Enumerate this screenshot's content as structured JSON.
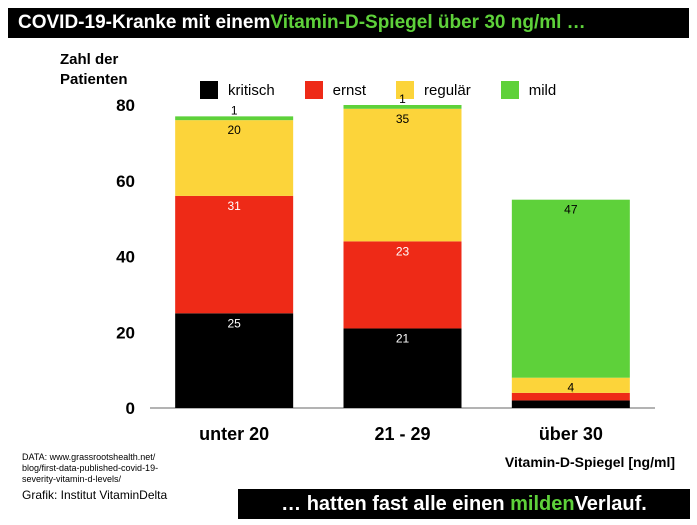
{
  "header": {
    "title_prefix": "COVID-19-Kranke mit einem ",
    "title_highlight": "Vitamin-D-Spiegel  über 30 ng/ml …"
  },
  "footer": {
    "text_prefix": "… hatten fast alle einen ",
    "text_highlight": "milden",
    "text_suffix": " Verlauf.",
    "source_lines": [
      "DATA: www.grassrootshealth.net/",
      "blog/first-data-published-covid-19-",
      "severity-vitamin-d-levels/"
    ],
    "credit": "Grafik: Institut VitaminDelta"
  },
  "colors": {
    "highlight": "#5ed13a"
  },
  "chart_data": {
    "type": "bar",
    "stacked": true,
    "ylabel_lines": [
      "Zahl der",
      "Patienten"
    ],
    "xlabel": "Vitamin-D-Spiegel [ng/ml]",
    "categories": [
      "unter 20",
      "21 - 29",
      "über 30"
    ],
    "ylim": [
      0,
      80
    ],
    "yticks": [
      0,
      20,
      40,
      60,
      80
    ],
    "grid": false,
    "legend_position": "top",
    "series": [
      {
        "name": "kritisch",
        "color": "#000000",
        "label_color": "#ffffff",
        "values": [
          25,
          21,
          2
        ]
      },
      {
        "name": "ernst",
        "color": "#ee2a17",
        "label_color": "#ffffff",
        "values": [
          31,
          23,
          2
        ]
      },
      {
        "name": "regulär",
        "color": "#fcd43a",
        "label_color": "#000000",
        "values": [
          20,
          35,
          4
        ]
      },
      {
        "name": "mild",
        "color": "#5ed13a",
        "label_color": "#000000",
        "values": [
          1,
          1,
          47
        ]
      }
    ],
    "value_labels": [
      [
        "25",
        "31",
        "20",
        "1"
      ],
      [
        "21",
        "23",
        "35",
        "1"
      ],
      [
        "2",
        "",
        "4",
        "47"
      ]
    ]
  }
}
